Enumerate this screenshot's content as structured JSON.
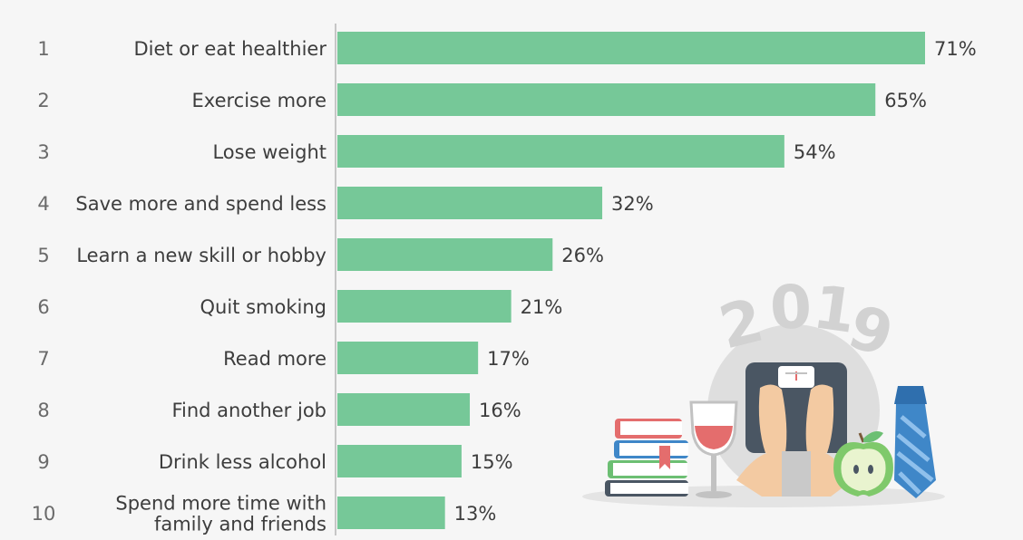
{
  "chart_data": {
    "type": "bar",
    "orientation": "horizontal",
    "title": "",
    "xlabel": "",
    "ylabel": "",
    "xlim": [
      0,
      71
    ],
    "grid": false,
    "legend": "none",
    "value_suffix": "%",
    "ranks": [
      "1",
      "2",
      "3",
      "4",
      "5",
      "6",
      "7",
      "8",
      "9",
      "10"
    ],
    "categories": [
      [
        "Diet or eat healthier"
      ],
      [
        "Exercise more"
      ],
      [
        "Lose weight"
      ],
      [
        "Save more and spend less"
      ],
      [
        "Learn a new skill or hobby"
      ],
      [
        "Quit smoking"
      ],
      [
        "Read more"
      ],
      [
        "Find another job"
      ],
      [
        "Drink less alcohol"
      ],
      [
        "Spend more time with",
        "family and friends"
      ]
    ],
    "values": [
      71,
      65,
      54,
      32,
      26,
      21,
      17,
      16,
      15,
      13
    ],
    "value_labels": [
      "71%",
      "65%",
      "54%",
      "32%",
      "26%",
      "21%",
      "17%",
      "16%",
      "15%",
      "13%"
    ]
  },
  "illustration": {
    "year_digits": [
      "2",
      "0",
      "1",
      "9"
    ],
    "items": [
      "book-stack-icon",
      "wine-glass-icon",
      "bathroom-scale-icon",
      "apple-icon",
      "necktie-icon"
    ]
  },
  "colors": {
    "background": "#f6f6f6",
    "bar": "#76c898",
    "axis_line": "#c6c6c6",
    "label_text": "#3d3d3d",
    "rank_text": "#6a6a6a",
    "illustration_circle": "#dedede",
    "year_text": "#d2d2d2"
  }
}
